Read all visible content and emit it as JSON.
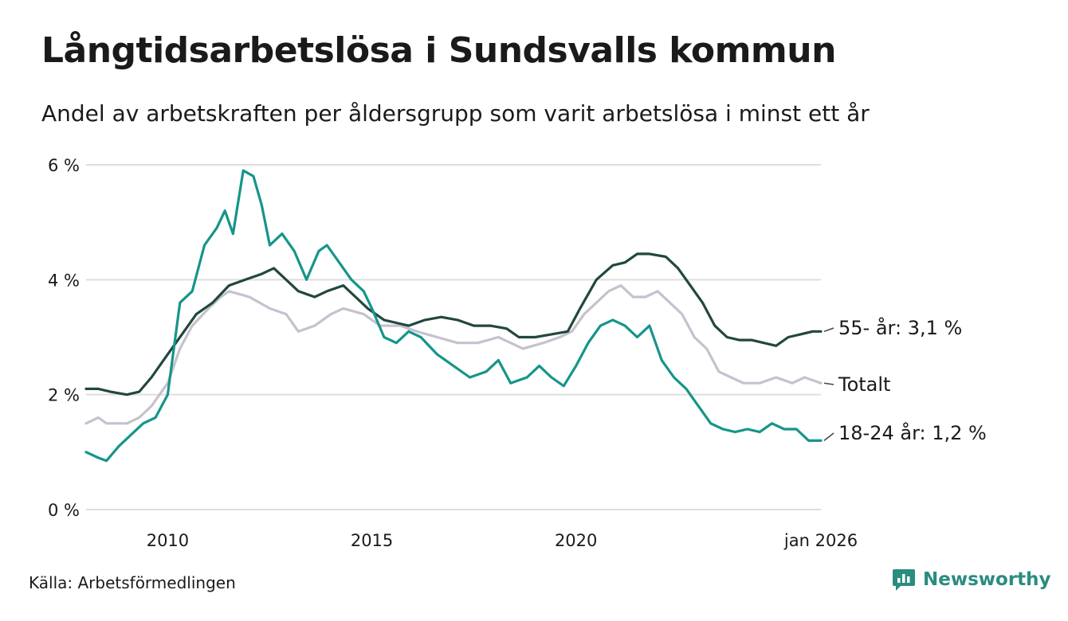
{
  "header": {
    "title": "Långtidsarbetslösa i Sundsvalls kommun",
    "subtitle": "Andel av arbetskraften per åldersgrupp som varit arbetslösa i minst ett år"
  },
  "footer": {
    "source": "Källa: Arbetsförmedlingen",
    "brand": "Newsworthy",
    "brand_icon": "newsworthy-logo-icon"
  },
  "colors": {
    "age_55": "#22473f",
    "total": "#c6c1ce",
    "age_18_24": "#15958a",
    "grid": "#dedede"
  },
  "chart_data": {
    "type": "line",
    "title": "Långtidsarbetslösa i Sundsvalls kommun",
    "xlabel": "",
    "ylabel": "",
    "ylim": [
      0,
      6
    ],
    "xlim": [
      2008.0,
      2026.0
    ],
    "yticks": [
      0,
      2,
      4,
      6
    ],
    "ytick_labels": [
      "0 %",
      "2 %",
      "4 %",
      "6 %"
    ],
    "xticks": [
      2010,
      2015,
      2020,
      2026
    ],
    "xtick_labels": [
      "2010",
      "2015",
      "2020",
      "jan 2026"
    ],
    "grid": true,
    "series": [
      {
        "name": "Totalt",
        "end_label": "Totalt",
        "color": "#c6c1ce",
        "points": [
          [
            2008.0,
            1.5
          ],
          [
            2008.3,
            1.6
          ],
          [
            2008.5,
            1.5
          ],
          [
            2009.0,
            1.5
          ],
          [
            2009.3,
            1.6
          ],
          [
            2009.6,
            1.8
          ],
          [
            2010.0,
            2.2
          ],
          [
            2010.3,
            2.8
          ],
          [
            2010.6,
            3.2
          ],
          [
            2011.0,
            3.5
          ],
          [
            2011.3,
            3.7
          ],
          [
            2011.5,
            3.8
          ],
          [
            2012.0,
            3.7
          ],
          [
            2012.5,
            3.5
          ],
          [
            2012.9,
            3.4
          ],
          [
            2013.2,
            3.1
          ],
          [
            2013.6,
            3.2
          ],
          [
            2014.0,
            3.4
          ],
          [
            2014.3,
            3.5
          ],
          [
            2014.8,
            3.4
          ],
          [
            2015.2,
            3.2
          ],
          [
            2015.7,
            3.2
          ],
          [
            2016.1,
            3.1
          ],
          [
            2016.6,
            3.0
          ],
          [
            2017.1,
            2.9
          ],
          [
            2017.6,
            2.9
          ],
          [
            2018.1,
            3.0
          ],
          [
            2018.4,
            2.9
          ],
          [
            2018.7,
            2.8
          ],
          [
            2019.2,
            2.9
          ],
          [
            2019.6,
            3.0
          ],
          [
            2019.9,
            3.1
          ],
          [
            2020.2,
            3.4
          ],
          [
            2020.5,
            3.6
          ],
          [
            2020.8,
            3.8
          ],
          [
            2021.1,
            3.9
          ],
          [
            2021.4,
            3.7
          ],
          [
            2021.7,
            3.7
          ],
          [
            2022.0,
            3.8
          ],
          [
            2022.3,
            3.6
          ],
          [
            2022.6,
            3.4
          ],
          [
            2022.9,
            3.0
          ],
          [
            2023.2,
            2.8
          ],
          [
            2023.5,
            2.4
          ],
          [
            2023.8,
            2.3
          ],
          [
            2024.1,
            2.2
          ],
          [
            2024.5,
            2.2
          ],
          [
            2024.9,
            2.3
          ],
          [
            2025.3,
            2.2
          ],
          [
            2025.6,
            2.3
          ],
          [
            2026.0,
            2.2
          ]
        ]
      },
      {
        "name": "55- år",
        "end_label": "55- år: 3,1 %",
        "color": "#22473f",
        "points": [
          [
            2008.0,
            2.1
          ],
          [
            2008.3,
            2.1
          ],
          [
            2008.6,
            2.05
          ],
          [
            2009.0,
            2.0
          ],
          [
            2009.3,
            2.05
          ],
          [
            2009.6,
            2.3
          ],
          [
            2010.0,
            2.7
          ],
          [
            2010.4,
            3.1
          ],
          [
            2010.7,
            3.4
          ],
          [
            2011.1,
            3.6
          ],
          [
            2011.5,
            3.9
          ],
          [
            2011.9,
            4.0
          ],
          [
            2012.3,
            4.1
          ],
          [
            2012.6,
            4.2
          ],
          [
            2012.9,
            4.0
          ],
          [
            2013.2,
            3.8
          ],
          [
            2013.6,
            3.7
          ],
          [
            2013.9,
            3.8
          ],
          [
            2014.3,
            3.9
          ],
          [
            2014.6,
            3.7
          ],
          [
            2014.9,
            3.5
          ],
          [
            2015.3,
            3.3
          ],
          [
            2015.6,
            3.25
          ],
          [
            2015.9,
            3.2
          ],
          [
            2016.3,
            3.3
          ],
          [
            2016.7,
            3.35
          ],
          [
            2017.1,
            3.3
          ],
          [
            2017.5,
            3.2
          ],
          [
            2017.9,
            3.2
          ],
          [
            2018.3,
            3.15
          ],
          [
            2018.6,
            3.0
          ],
          [
            2019.0,
            3.0
          ],
          [
            2019.4,
            3.05
          ],
          [
            2019.8,
            3.1
          ],
          [
            2020.1,
            3.5
          ],
          [
            2020.5,
            4.0
          ],
          [
            2020.9,
            4.25
          ],
          [
            2021.2,
            4.3
          ],
          [
            2021.5,
            4.45
          ],
          [
            2021.8,
            4.45
          ],
          [
            2022.2,
            4.4
          ],
          [
            2022.5,
            4.2
          ],
          [
            2022.8,
            3.9
          ],
          [
            2023.1,
            3.6
          ],
          [
            2023.4,
            3.2
          ],
          [
            2023.7,
            3.0
          ],
          [
            2024.0,
            2.95
          ],
          [
            2024.3,
            2.95
          ],
          [
            2024.6,
            2.9
          ],
          [
            2024.9,
            2.85
          ],
          [
            2025.2,
            3.0
          ],
          [
            2025.5,
            3.05
          ],
          [
            2025.8,
            3.1
          ],
          [
            2026.0,
            3.1
          ]
        ]
      },
      {
        "name": "18-24 år",
        "end_label": "18-24 år: 1,2 %",
        "color": "#15958a",
        "points": [
          [
            2008.0,
            1.0
          ],
          [
            2008.3,
            0.9
          ],
          [
            2008.5,
            0.85
          ],
          [
            2008.8,
            1.1
          ],
          [
            2009.1,
            1.3
          ],
          [
            2009.4,
            1.5
          ],
          [
            2009.7,
            1.6
          ],
          [
            2010.0,
            2.0
          ],
          [
            2010.3,
            3.6
          ],
          [
            2010.6,
            3.8
          ],
          [
            2010.9,
            4.6
          ],
          [
            2011.2,
            4.9
          ],
          [
            2011.4,
            5.2
          ],
          [
            2011.6,
            4.8
          ],
          [
            2011.85,
            5.9
          ],
          [
            2012.1,
            5.8
          ],
          [
            2012.3,
            5.3
          ],
          [
            2012.5,
            4.6
          ],
          [
            2012.8,
            4.8
          ],
          [
            2013.1,
            4.5
          ],
          [
            2013.4,
            4.0
          ],
          [
            2013.7,
            4.5
          ],
          [
            2013.9,
            4.6
          ],
          [
            2014.2,
            4.3
          ],
          [
            2014.5,
            4.0
          ],
          [
            2014.8,
            3.8
          ],
          [
            2015.0,
            3.5
          ],
          [
            2015.3,
            3.0
          ],
          [
            2015.6,
            2.9
          ],
          [
            2015.9,
            3.1
          ],
          [
            2016.2,
            3.0
          ],
          [
            2016.6,
            2.7
          ],
          [
            2017.0,
            2.5
          ],
          [
            2017.4,
            2.3
          ],
          [
            2017.8,
            2.4
          ],
          [
            2018.1,
            2.6
          ],
          [
            2018.4,
            2.2
          ],
          [
            2018.8,
            2.3
          ],
          [
            2019.1,
            2.5
          ],
          [
            2019.4,
            2.3
          ],
          [
            2019.7,
            2.15
          ],
          [
            2020.0,
            2.5
          ],
          [
            2020.3,
            2.9
          ],
          [
            2020.6,
            3.2
          ],
          [
            2020.9,
            3.3
          ],
          [
            2021.2,
            3.2
          ],
          [
            2021.5,
            3.0
          ],
          [
            2021.8,
            3.2
          ],
          [
            2022.1,
            2.6
          ],
          [
            2022.4,
            2.3
          ],
          [
            2022.7,
            2.1
          ],
          [
            2023.0,
            1.8
          ],
          [
            2023.3,
            1.5
          ],
          [
            2023.6,
            1.4
          ],
          [
            2023.9,
            1.35
          ],
          [
            2024.2,
            1.4
          ],
          [
            2024.5,
            1.35
          ],
          [
            2024.8,
            1.5
          ],
          [
            2025.1,
            1.4
          ],
          [
            2025.4,
            1.4
          ],
          [
            2025.7,
            1.2
          ],
          [
            2026.0,
            1.2
          ]
        ]
      }
    ]
  }
}
